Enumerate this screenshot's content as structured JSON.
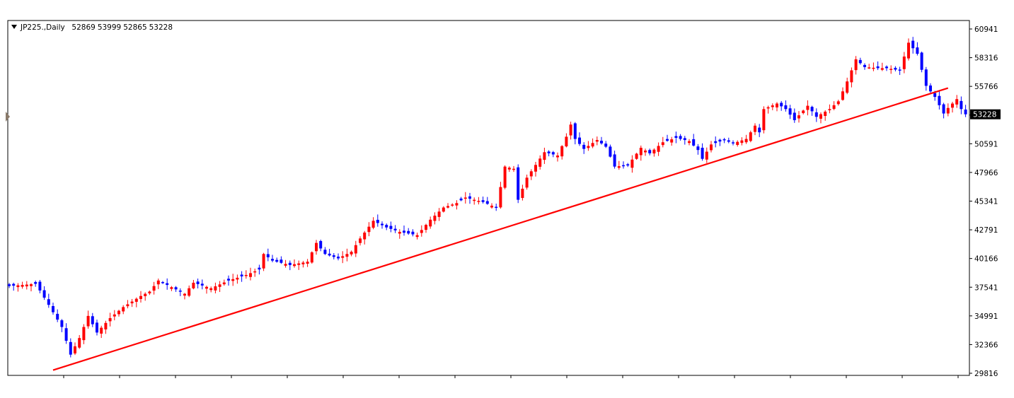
{
  "header": {
    "symbol": "JP225.,Daily",
    "open": "52869",
    "high": "53999",
    "low": "52865",
    "close": "53228"
  },
  "price_axis": {
    "labels": [
      "60941",
      "58316",
      "55766",
      "53228",
      "50591",
      "47966",
      "45341",
      "42791",
      "40166",
      "37541",
      "34991",
      "32366",
      "29816"
    ],
    "current_price_label": "53228"
  },
  "colors": {
    "bull": "#ff0000",
    "bear": "#0000ff",
    "trendline": "#ff0000",
    "frame": "#000000",
    "price_badge_bg": "#000000",
    "price_badge_text": "#ffffff"
  },
  "chart_data": {
    "type": "candlestick",
    "title": "JP225.,Daily",
    "ylim": [
      29816,
      60941
    ],
    "grid": false,
    "y_ticks": [
      60941,
      58316,
      55766,
      53228,
      50591,
      47966,
      45341,
      42791,
      40166,
      37541,
      34991,
      32366,
      29816
    ],
    "last_price": 53228,
    "anchors": [
      [
        0,
        37700
      ],
      [
        6,
        37900
      ],
      [
        7,
        37300
      ],
      [
        9,
        36000
      ],
      [
        12,
        34000
      ],
      [
        14,
        31500
      ],
      [
        16,
        33000
      ],
      [
        18,
        35000
      ],
      [
        20,
        33500
      ],
      [
        23,
        34800
      ],
      [
        26,
        35800
      ],
      [
        30,
        36800
      ],
      [
        32,
        37200
      ],
      [
        34,
        38200
      ],
      [
        37,
        37600
      ],
      [
        40,
        37000
      ],
      [
        42,
        38000
      ],
      [
        46,
        37500
      ],
      [
        50,
        38200
      ],
      [
        54,
        38700
      ],
      [
        57,
        39200
      ],
      [
        58,
        40600
      ],
      [
        60,
        40000
      ],
      [
        64,
        39600
      ],
      [
        68,
        39900
      ],
      [
        70,
        41600
      ],
      [
        72,
        40600
      ],
      [
        75,
        40200
      ],
      [
        78,
        40800
      ],
      [
        80,
        42000
      ],
      [
        83,
        43600
      ],
      [
        86,
        43000
      ],
      [
        89,
        42600
      ],
      [
        93,
        42300
      ],
      [
        96,
        43700
      ],
      [
        99,
        44800
      ],
      [
        102,
        45200
      ],
      [
        104,
        45700
      ],
      [
        108,
        45300
      ],
      [
        111,
        44800
      ],
      [
        113,
        48500
      ],
      [
        115,
        48300
      ],
      [
        116,
        45500
      ],
      [
        118,
        47500
      ],
      [
        122,
        49800
      ],
      [
        125,
        49500
      ],
      [
        127,
        51200
      ],
      [
        128,
        52300
      ],
      [
        129,
        51000
      ],
      [
        131,
        50100
      ],
      [
        134,
        50900
      ],
      [
        136,
        50300
      ],
      [
        138,
        48500
      ],
      [
        141,
        48600
      ],
      [
        144,
        50200
      ],
      [
        146,
        49700
      ],
      [
        149,
        50700
      ],
      [
        152,
        51100
      ],
      [
        155,
        50800
      ],
      [
        157,
        50000
      ],
      [
        158,
        49200
      ],
      [
        160,
        50500
      ],
      [
        163,
        50900
      ],
      [
        165,
        50600
      ],
      [
        168,
        51000
      ],
      [
        170,
        52200
      ],
      [
        171,
        51600
      ],
      [
        172,
        53700
      ],
      [
        175,
        54200
      ],
      [
        177,
        53700
      ],
      [
        179,
        52700
      ],
      [
        182,
        54000
      ],
      [
        184,
        53000
      ],
      [
        187,
        53700
      ],
      [
        189,
        54400
      ],
      [
        191,
        56200
      ],
      [
        193,
        58200
      ],
      [
        195,
        57500
      ],
      [
        198,
        57400
      ],
      [
        200,
        57400
      ],
      [
        203,
        57200
      ],
      [
        205,
        59700
      ],
      [
        207,
        58700
      ],
      [
        209,
        55800
      ],
      [
        211,
        54800
      ],
      [
        213,
        53300
      ],
      [
        214,
        53800
      ],
      [
        216,
        54600
      ],
      [
        217,
        53700
      ],
      [
        218,
        53228
      ]
    ],
    "trendline": [
      [
        10,
        30100
      ],
      [
        214,
        55600
      ]
    ]
  }
}
